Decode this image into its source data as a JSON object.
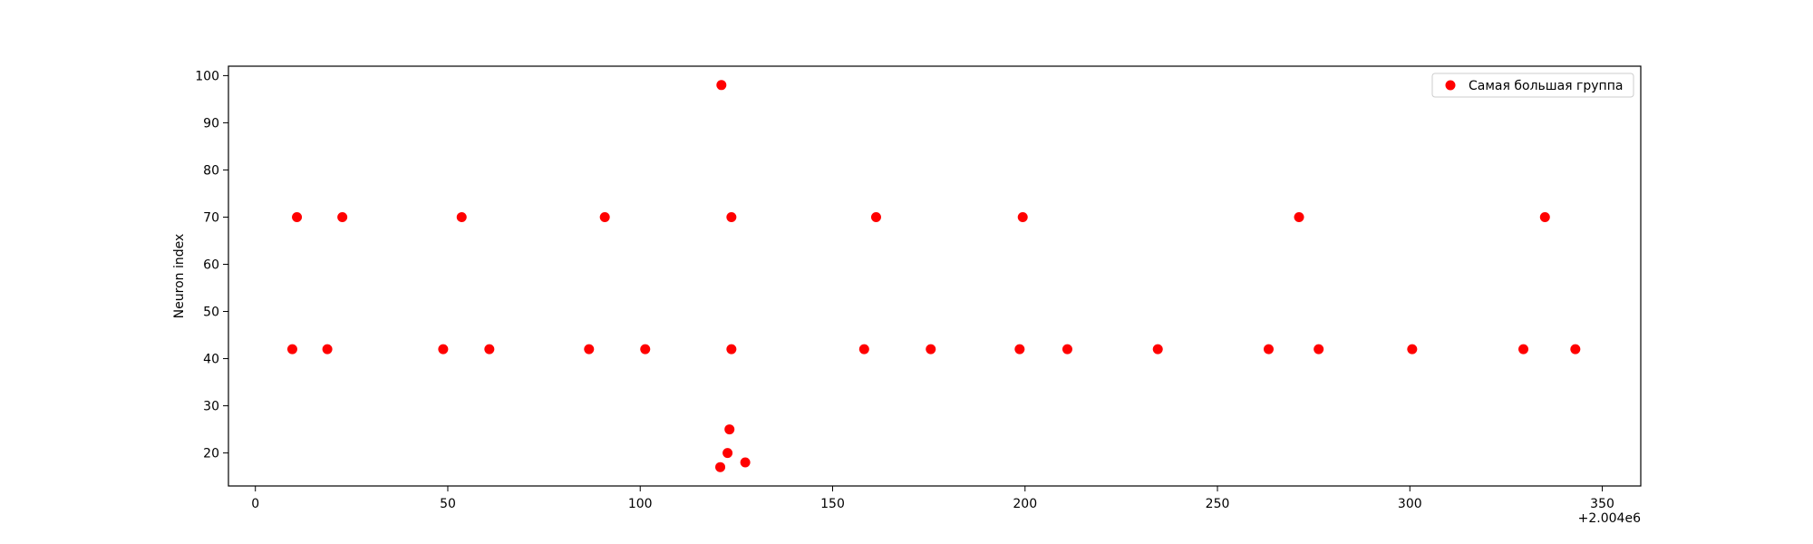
{
  "chart_data": {
    "type": "scatter",
    "title": "",
    "xlabel": "",
    "ylabel": "Neuron index",
    "x_offset_label": "+2.004e6",
    "xlim": [
      -7,
      360
    ],
    "ylim": [
      13,
      102
    ],
    "xticks": [
      0,
      50,
      100,
      150,
      200,
      250,
      300,
      350
    ],
    "yticks": [
      20,
      30,
      40,
      50,
      60,
      70,
      80,
      90,
      100
    ],
    "grid": false,
    "legend_position": "top-right",
    "series": [
      {
        "name": "Самая большая группа",
        "color": "#ff0000",
        "marker": "circle",
        "points": [
          {
            "x": 9.6,
            "y": 42
          },
          {
            "x": 10.8,
            "y": 70
          },
          {
            "x": 18.7,
            "y": 42
          },
          {
            "x": 22.6,
            "y": 70
          },
          {
            "x": 48.8,
            "y": 42
          },
          {
            "x": 53.6,
            "y": 70
          },
          {
            "x": 60.8,
            "y": 42
          },
          {
            "x": 86.7,
            "y": 42
          },
          {
            "x": 90.8,
            "y": 70
          },
          {
            "x": 101.3,
            "y": 42
          },
          {
            "x": 121.1,
            "y": 98
          },
          {
            "x": 120.8,
            "y": 17
          },
          {
            "x": 122.7,
            "y": 20
          },
          {
            "x": 123.2,
            "y": 25
          },
          {
            "x": 123.7,
            "y": 42
          },
          {
            "x": 123.7,
            "y": 70
          },
          {
            "x": 127.3,
            "y": 18
          },
          {
            "x": 158.2,
            "y": 42
          },
          {
            "x": 161.3,
            "y": 70
          },
          {
            "x": 175.5,
            "y": 42
          },
          {
            "x": 198.6,
            "y": 42
          },
          {
            "x": 199.4,
            "y": 70
          },
          {
            "x": 211.0,
            "y": 42
          },
          {
            "x": 234.5,
            "y": 42
          },
          {
            "x": 263.3,
            "y": 42
          },
          {
            "x": 271.2,
            "y": 70
          },
          {
            "x": 276.3,
            "y": 42
          },
          {
            "x": 300.6,
            "y": 42
          },
          {
            "x": 329.5,
            "y": 42
          },
          {
            "x": 335.1,
            "y": 70
          },
          {
            "x": 343.0,
            "y": 42
          }
        ]
      }
    ]
  }
}
